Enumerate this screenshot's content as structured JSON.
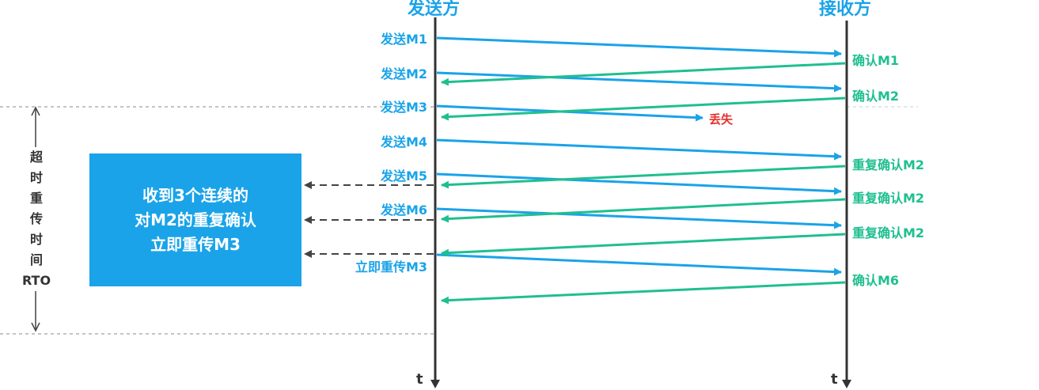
{
  "sender": {
    "title": "发送方",
    "time_label": "t"
  },
  "receiver": {
    "title": "接收方",
    "time_label": "t"
  },
  "send_labels": [
    "发送M1",
    "发送M2",
    "发送M3",
    "发送M4",
    "发送M5",
    "发送M6",
    "立即重传M3"
  ],
  "ack_labels": [
    "确认M1",
    "确认M2",
    "重复确认M2",
    "重复确认M2",
    "重复确认M2",
    "确认M6"
  ],
  "lost_label": "丢失",
  "fast_retransmit_note": [
    "收到3个连续的",
    "对M2的重复确认",
    "立即重传M3"
  ],
  "rto_label_chars": [
    "超",
    "时",
    "重",
    "传",
    "时",
    "间"
  ],
  "rto_label_abbr": "RTO",
  "colors": {
    "data": "#1aa3e8",
    "ack": "#1fbf8f",
    "lost": "#e5322d",
    "axis": "#333333",
    "note_bg": "#1aa3e8"
  }
}
